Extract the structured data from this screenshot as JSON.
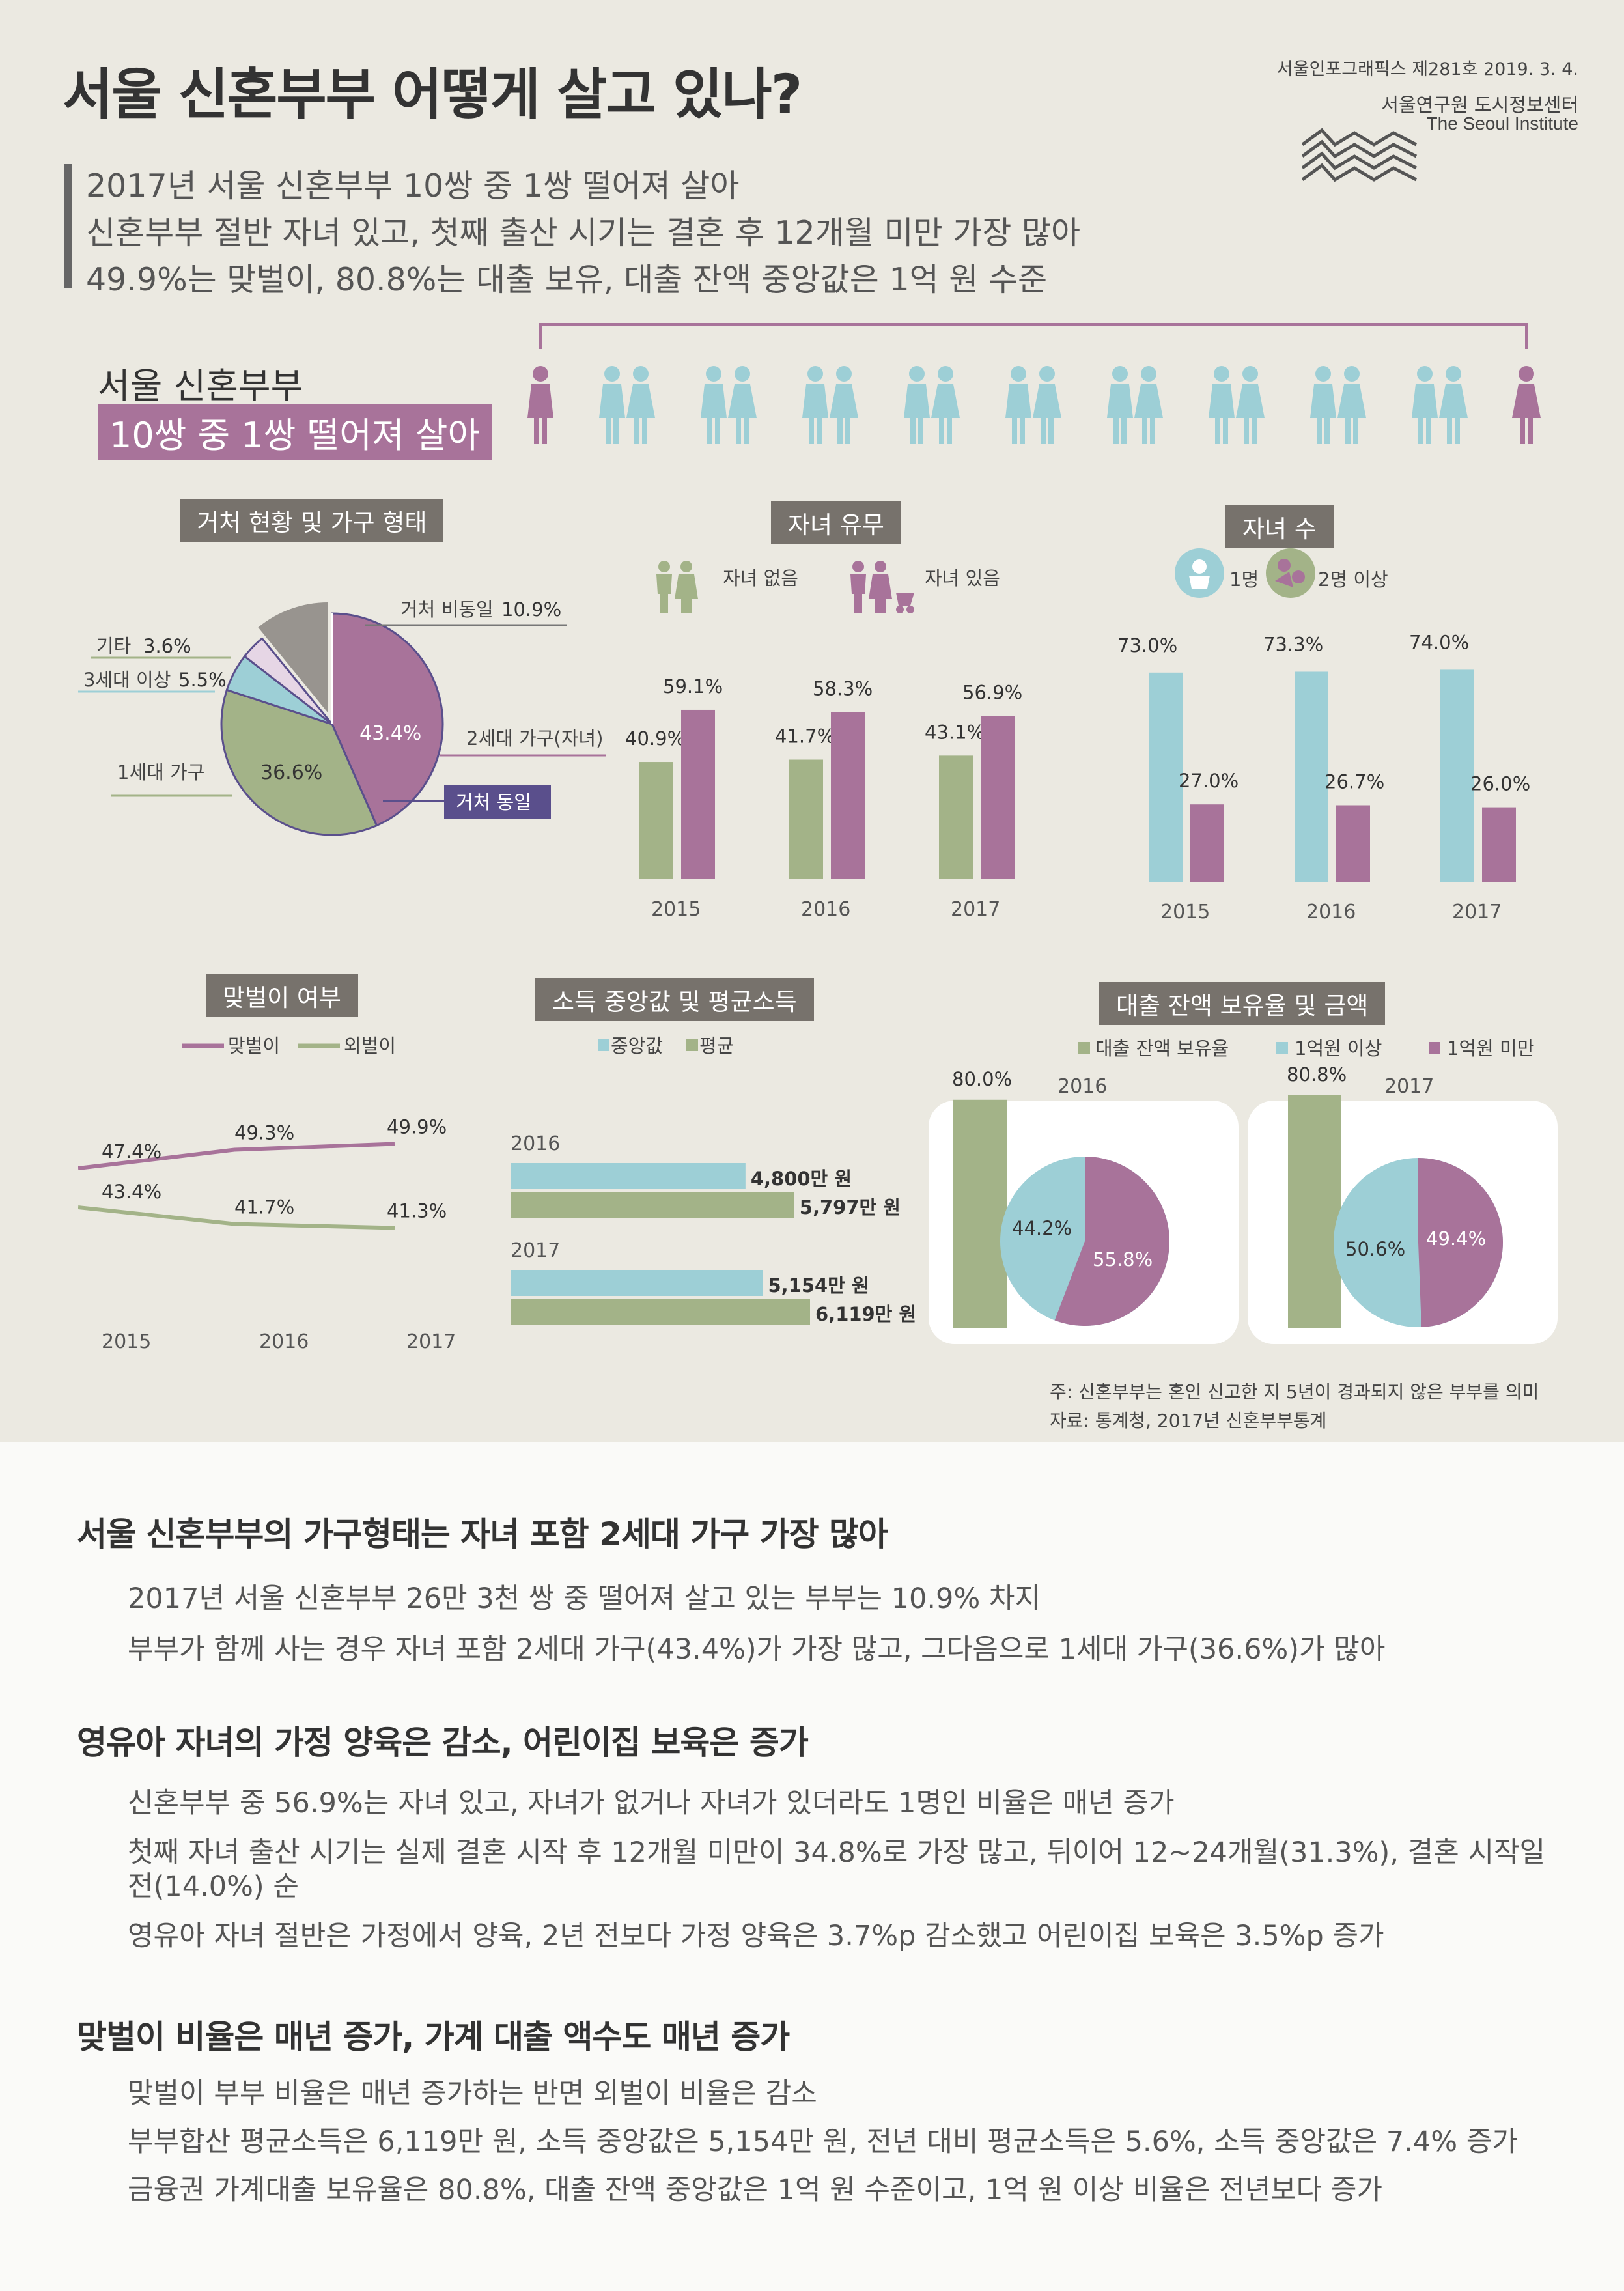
{
  "header": {
    "title": "서울 신혼부부 어떻게 살고 있나?",
    "series_no": "서울인포그래픽스 제281호 2019. 3. 4.",
    "org": "서울연구원 도시정보센터",
    "org_en": "The Seoul Institute",
    "summary": [
      "2017년 서울 신혼부부 10쌍 중 1쌍 떨어져 살아",
      "신혼부부 절반 자녀 있고, 첫째 출산 시기는 결혼 후 12개월 미만 가장 많아",
      "49.9%는 맞벌이, 80.8%는 대출 보유, 대출 잔액 중앙값은 1억 원 수준"
    ]
  },
  "headline": {
    "line1": "서울 신혼부부",
    "line2": "10쌍 중 1쌍 떨어져 살아"
  },
  "colors": {
    "pink": "#a8739a",
    "teal": "#9dcfd6",
    "green": "#a3b388",
    "gray": "#98948f",
    "panel": "#ebe9e1"
  },
  "sections": {
    "residence": "거처 현황 및 가구 형태",
    "children": "자녀 유무",
    "num_children": "자녀 수",
    "dual_income": "맞벌이 여부",
    "income": "소득 중앙값 및 평균소득",
    "loan": "대출 잔액 보유율 및 금액"
  },
  "chart_data": [
    {
      "type": "pie",
      "id": "residence",
      "slices": [
        {
          "label": "2세대 가구(자녀)",
          "value": 43.4
        },
        {
          "label": "1세대 가구",
          "value": 36.6
        },
        {
          "label": "3세대 이상",
          "value": 5.5
        },
        {
          "label": "기타",
          "value": 3.6
        },
        {
          "label": "거처 비동일",
          "value": 10.9
        }
      ],
      "labels": {
        "separate": "거처 비동일",
        "separate_val": "10.9%",
        "etc": "기타",
        "etc_val": "3.6%",
        "three_gen": "3세대 이상",
        "three_gen_val": "5.5%",
        "one_gen": "1세대 가구",
        "one_gen_val": "36.6%",
        "two_gen": "2세대 가구(자녀)",
        "two_gen_val": "43.4%",
        "same": "거처 동일"
      }
    },
    {
      "type": "bar",
      "id": "children",
      "categories": [
        "2015",
        "2016",
        "2017"
      ],
      "series": [
        {
          "name": "자녀 없음",
          "values": [
            40.9,
            41.7,
            43.1
          ]
        },
        {
          "name": "자녀 있음",
          "values": [
            59.1,
            58.3,
            56.9
          ]
        }
      ],
      "value_labels": [
        [
          "40.9%",
          "41.7%",
          "43.1%"
        ],
        [
          "59.1%",
          "58.3%",
          "56.9%"
        ]
      ]
    },
    {
      "type": "bar",
      "id": "num_children",
      "categories": [
        "2015",
        "2016",
        "2017"
      ],
      "series": [
        {
          "name": "1명",
          "values": [
            73.0,
            73.3,
            74.0
          ]
        },
        {
          "name": "2명 이상",
          "values": [
            27.0,
            26.7,
            26.0
          ]
        }
      ],
      "value_labels": [
        [
          "73.0%",
          "73.3%",
          "74.0%"
        ],
        [
          "27.0%",
          "26.7%",
          "26.0%"
        ]
      ]
    },
    {
      "type": "line",
      "id": "dual_income",
      "categories": [
        "2015",
        "2016",
        "2017"
      ],
      "series": [
        {
          "name": "맞벌이",
          "values": [
            47.4,
            49.3,
            49.9
          ]
        },
        {
          "name": "외벌이",
          "values": [
            43.4,
            41.7,
            41.3
          ]
        }
      ],
      "value_labels": [
        [
          "47.4%",
          "49.3%",
          "49.9%"
        ],
        [
          "43.4%",
          "41.7%",
          "41.3%"
        ]
      ]
    },
    {
      "type": "bar",
      "id": "income",
      "categories": [
        "2016",
        "2017"
      ],
      "series": [
        {
          "name": "중앙값",
          "values": [
            4800,
            5154
          ]
        },
        {
          "name": "평균",
          "values": [
            5797,
            6119
          ]
        }
      ],
      "value_labels": [
        [
          "4,800만 원",
          "5,154만 원"
        ],
        [
          "5,797만 원",
          "6,119만 원"
        ]
      ]
    },
    {
      "type": "bar",
      "id": "loan_rate",
      "categories": [
        "2016",
        "2017"
      ],
      "series": [
        {
          "name": "대출 잔액 보유율",
          "values": [
            80.0,
            80.8
          ]
        }
      ],
      "value_labels": [
        [
          "80.0%",
          "80.8%"
        ]
      ]
    },
    {
      "type": "pie",
      "id": "loan_amount",
      "years": [
        "2016",
        "2017"
      ],
      "series": [
        {
          "name": "1억원 이상",
          "values": [
            44.2,
            50.6
          ]
        },
        {
          "name": "1억원 미만",
          "values": [
            55.8,
            49.4
          ]
        }
      ],
      "value_labels": [
        [
          "44.2%",
          "50.6%"
        ],
        [
          "55.8%",
          "49.4%"
        ]
      ]
    }
  ],
  "legends": {
    "income": [
      "중앙값",
      "평균"
    ],
    "loan": [
      "대출 잔액 보유율",
      "1억원 이상",
      "1억원 미만"
    ]
  },
  "notes": {
    "note": "주: 신혼부부는 혼인 신고한 지 5년이 경과되지 않은 부부를 의미",
    "source": "자료: 통계청, 2017년 신혼부부통계"
  },
  "text": [
    {
      "heading": "서울 신혼부부의 가구형태는 자녀 포함 2세대 가구 가장 많아",
      "lines": [
        "2017년 서울 신혼부부 26만 3천 쌍 중 떨어져 살고 있는 부부는 10.9% 차지",
        "부부가 함께 사는 경우 자녀 포함 2세대 가구(43.4%)가 가장 많고, 그다음으로 1세대 가구(36.6%)가 많아"
      ]
    },
    {
      "heading": "영유아 자녀의 가정 양육은 감소, 어린이집 보육은 증가",
      "lines": [
        "신혼부부 중 56.9%는 자녀 있고, 자녀가 없거나 자녀가 있더라도 1명인 비율은 매년 증가",
        "첫째 자녀 출산 시기는 실제 결혼 시작 후 12개월 미만이 34.8%로 가장 많고, 뒤이어 12~24개월(31.3%), 결혼 시작일 전(14.0%) 순",
        "영유아 자녀 절반은 가정에서 양육, 2년 전보다 가정 양육은 3.7%p 감소했고 어린이집 보육은 3.5%p 증가"
      ]
    },
    {
      "heading": "맞벌이 비율은 매년 증가, 가계 대출 액수도 매년 증가",
      "lines": [
        "맞벌이 부부 비율은 매년 증가하는 반면 외벌이 비율은 감소",
        "부부합산 평균소득은 6,119만 원, 소득 중앙값은 5,154만 원, 전년 대비 평균소득은 5.6%, 소득 중앙값은 7.4% 증가",
        "금융권 가계대출 보유율은 80.8%, 대출 잔액 중앙값은 1억 원 수준이고, 1억 원 이상 비율은 전년보다 증가"
      ]
    }
  ]
}
